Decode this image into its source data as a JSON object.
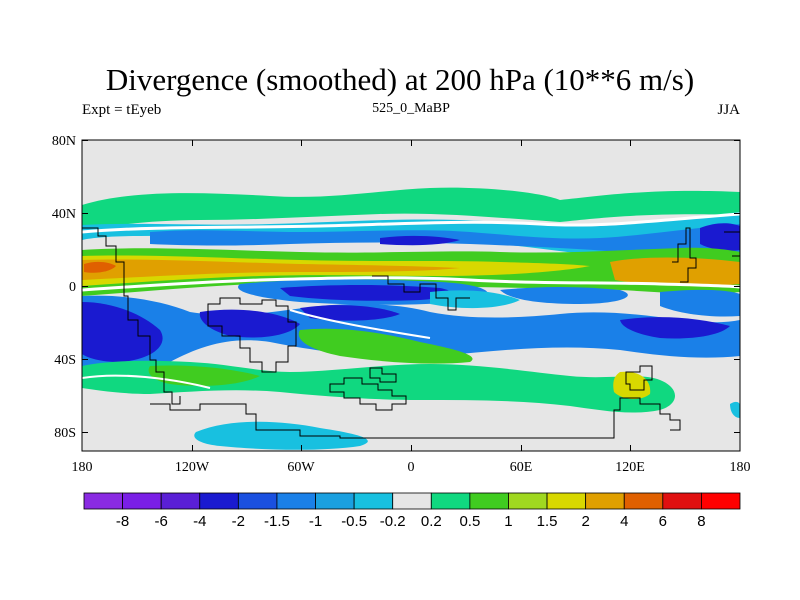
{
  "figure": {
    "title": "Divergence (smoothed) at 200 hPa (10**6 m/s)",
    "left_label": "Expt = tEyeb",
    "center_label": "525_0_MaBP",
    "right_label": "JJA"
  },
  "axes": {
    "y_ticks": [
      "80N",
      "40N",
      "0",
      "40S",
      "80S"
    ],
    "x_ticks": [
      "180",
      "120W",
      "60W",
      "0",
      "60E",
      "120E",
      "180"
    ]
  },
  "colorbar": {
    "labels": [
      "-8",
      "-6",
      "-4",
      "-2",
      "-1.5",
      "-1",
      "-0.5",
      "-0.2",
      "0.2",
      "0.5",
      "1",
      "1.5",
      "2",
      "4",
      "6",
      "8"
    ],
    "colors": [
      "#8a2be2",
      "#7a1fe6",
      "#5a1fd6",
      "#1a1ad0",
      "#1a50e0",
      "#1a80e8",
      "#1aa0e0",
      "#18c0e0",
      "#e6e6e6",
      "#10d880",
      "#40cc20",
      "#a0d820",
      "#d8d800",
      "#e0a000",
      "#e06000",
      "#e01010",
      "#ff0000"
    ]
  },
  "field_colors": {
    "background": "#e6e6e6",
    "neg_light": "#18c0e0",
    "neg_mid": "#1a80e8",
    "neg_strong": "#1a1ad0",
    "pos_light": "#10d880",
    "pos_mid": "#40cc20",
    "pos_yellow": "#d8d800",
    "pos_orange": "#e0a000",
    "pos_red": "#e06000"
  }
}
